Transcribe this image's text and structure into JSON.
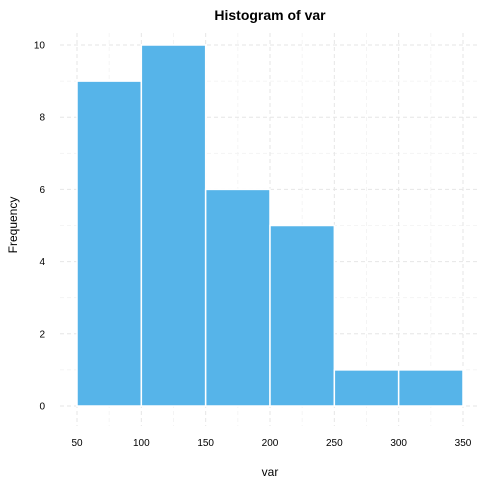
{
  "chart_data": {
    "type": "bar",
    "title": "Histogram of var",
    "xlabel": "var",
    "ylabel": "Frequency",
    "bins": [
      {
        "from": 50,
        "to": 100,
        "count": 9
      },
      {
        "from": 100,
        "to": 150,
        "count": 10
      },
      {
        "from": 150,
        "to": 200,
        "count": 6
      },
      {
        "from": 200,
        "to": 250,
        "count": 5
      },
      {
        "from": 250,
        "to": 300,
        "count": 1
      },
      {
        "from": 300,
        "to": 350,
        "count": 1
      }
    ],
    "xlim": [
      50,
      350
    ],
    "ylim": [
      0,
      10
    ],
    "x_ticks": [
      "50",
      "100",
      "150",
      "200",
      "250",
      "300",
      "350"
    ],
    "y_ticks": [
      "0",
      "2",
      "4",
      "6",
      "8",
      "10"
    ],
    "grid": true,
    "bar_color": "#56B4E9",
    "bar_border_color": "#ffffff"
  }
}
